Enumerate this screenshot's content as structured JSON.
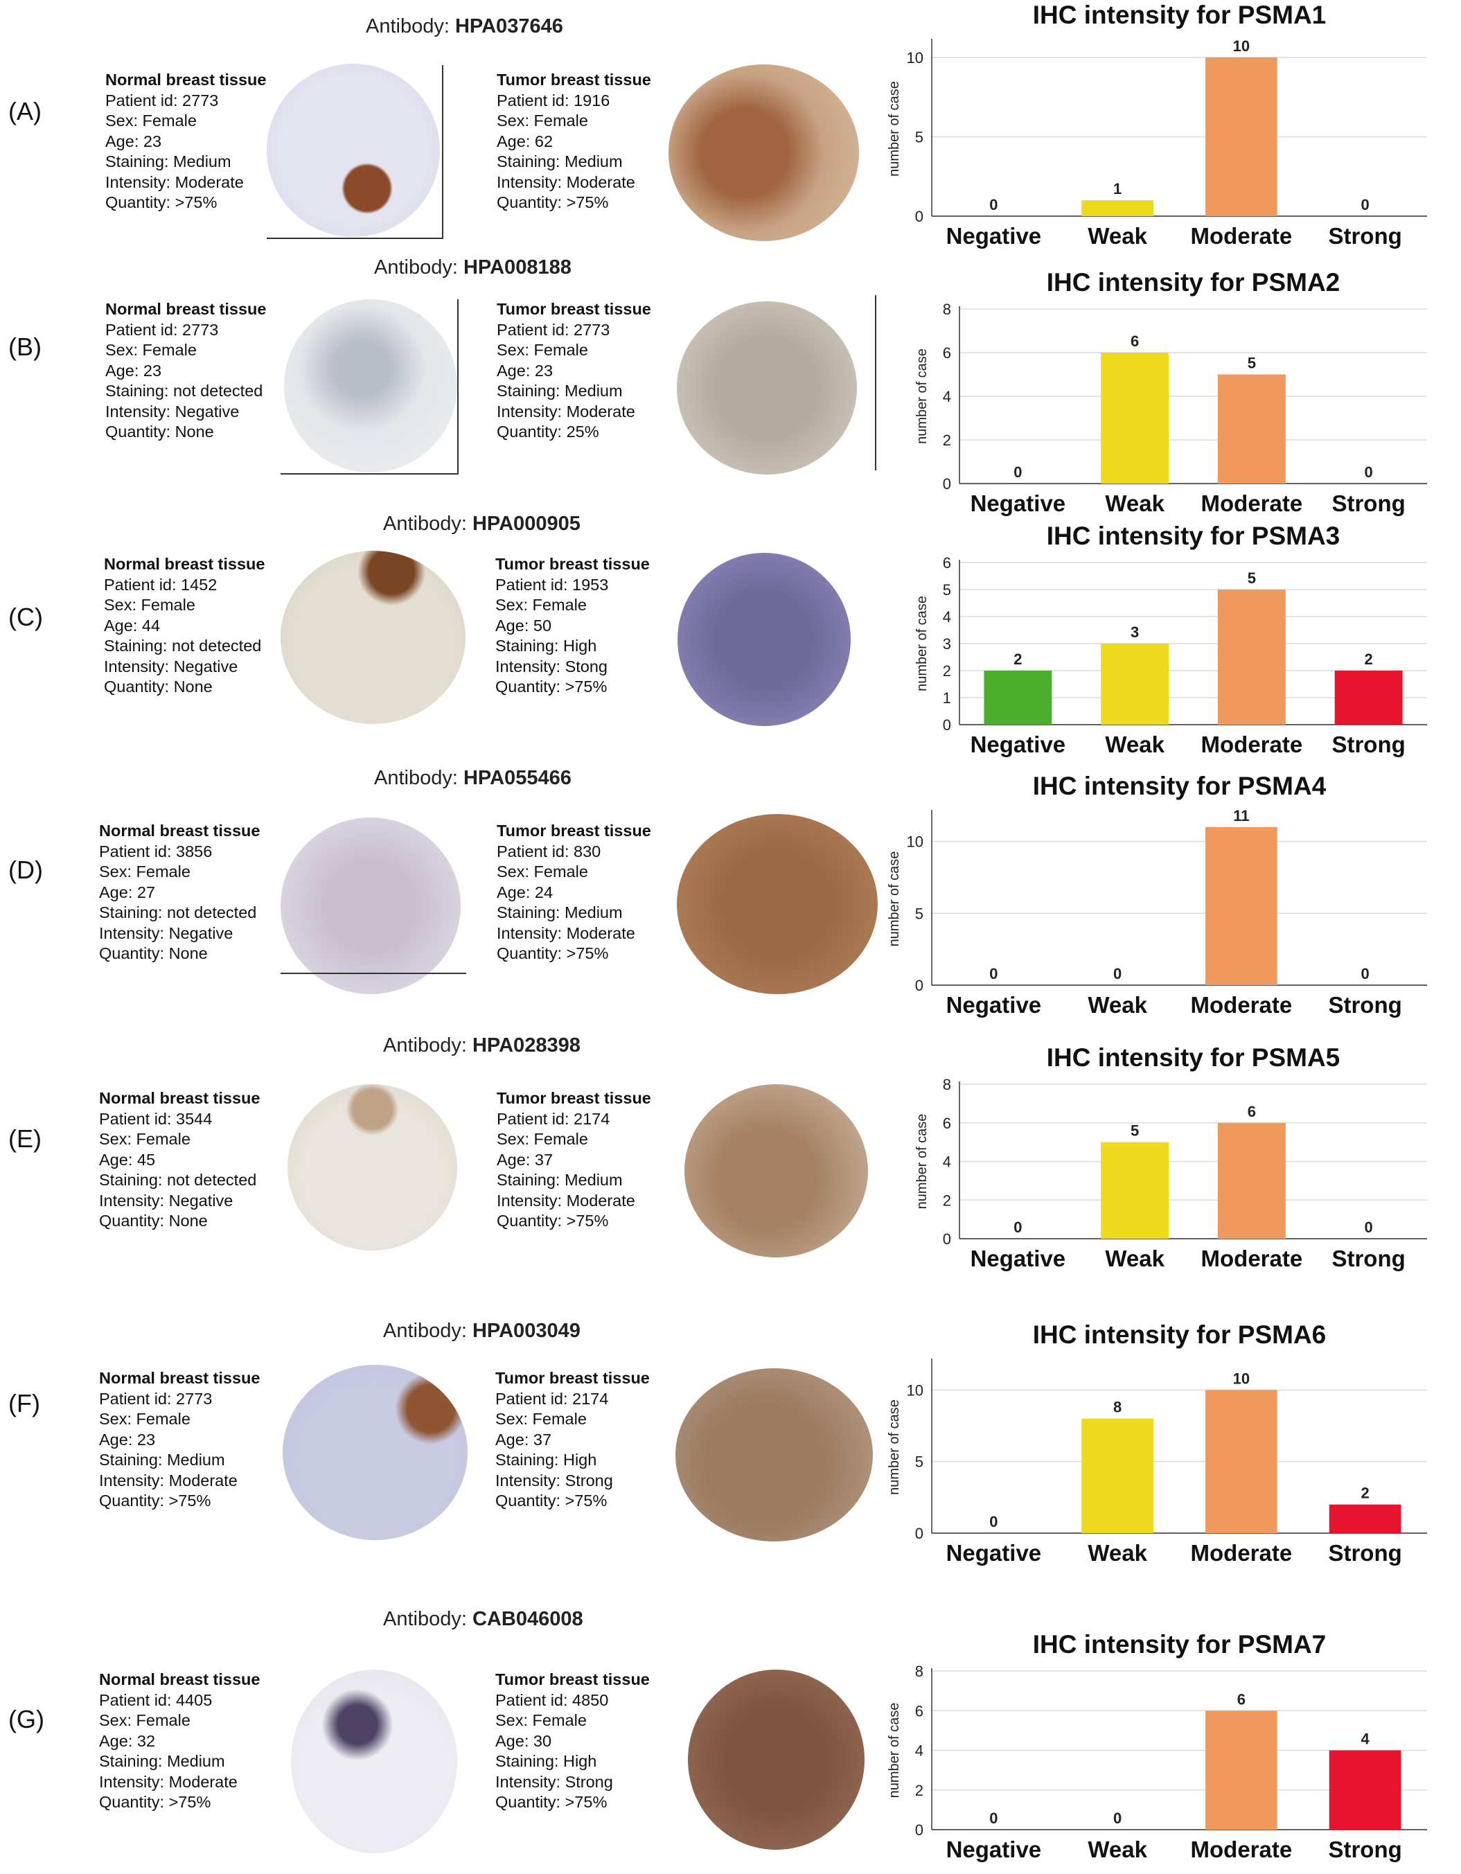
{
  "chart_data": [
    {
      "panel": "(A)",
      "antibody_label": "Antibody:",
      "antibody": "HPA037646",
      "type": "bar",
      "title": "IHC intensity for PSMA1",
      "ylabel": "number of case",
      "categories": [
        "Negative",
        "Weak",
        "Moderate",
        "Strong"
      ],
      "values": [
        0,
        1,
        10,
        0
      ],
      "ylim": [
        0,
        11
      ],
      "yticks": [
        0,
        5,
        10
      ],
      "colors": [
        "#4cae2d",
        "#eed91d",
        "#ef9a5c",
        "#e8132c"
      ],
      "grid": true,
      "normal": {
        "title": "Normal  breast tissue",
        "patient": "Patient id: 2773",
        "sex": "Sex: Female",
        "age": "Age: 23",
        "staining": "Staining: Medium",
        "intensity": "Intensity: Moderate",
        "quantity": "Quantity: >75%"
      },
      "tumor": {
        "title": "Tumor breast tissue",
        "patient": "Patient id: 1916",
        "sex": "Sex: Female",
        "age": "Age: 62",
        "staining": "Staining: Medium",
        "intensity": "Intensity: Moderate",
        "quantity": "Quantity: >75%"
      }
    },
    {
      "panel": "(B)",
      "antibody_label": "Antibody:",
      "antibody": "HPA008188",
      "type": "bar",
      "title": "IHC intensity for PSMA2",
      "ylabel": "number of case",
      "categories": [
        "Negative",
        "Weak",
        "Moderate",
        "Strong"
      ],
      "values": [
        0,
        6,
        5,
        0
      ],
      "ylim": [
        0,
        8
      ],
      "yticks": [
        0,
        2,
        4,
        6,
        8
      ],
      "colors": [
        "#4cae2d",
        "#eed91d",
        "#ef9a5c",
        "#e8132c"
      ],
      "grid": true,
      "normal": {
        "title": "Normal  breast tissue",
        "patient": "Patient id: 2773",
        "sex": "Sex: Female",
        "age": "Age: 23",
        "staining": "Staining: not detected",
        "intensity": "Intensity: Negative",
        "quantity": "Quantity: None"
      },
      "tumor": {
        "title": "Tumor breast tissue",
        "patient": "Patient id: 2773",
        "sex": "Sex: Female",
        "age": "Age: 23",
        "staining": "Staining: Medium",
        "intensity": "Intensity: Moderate",
        "quantity": "Quantity: 25%"
      }
    },
    {
      "panel": "(C)",
      "antibody_label": "Antibody:",
      "antibody": "HPA000905",
      "type": "bar",
      "title": "IHC intensity for PSMA3",
      "ylabel": "number of case",
      "categories": [
        "Negative",
        "Weak",
        "Moderate",
        "Strong"
      ],
      "values": [
        2,
        3,
        5,
        2
      ],
      "ylim": [
        0,
        6
      ],
      "yticks": [
        0,
        1,
        2,
        3,
        4,
        5,
        6
      ],
      "colors": [
        "#4cae2d",
        "#eed91d",
        "#ef9a5c",
        "#e8132c"
      ],
      "grid": true,
      "normal": {
        "title": "Normal  breast tissue",
        "patient": "Patient id: 1452",
        "sex": "Sex: Female",
        "age": "Age: 44",
        "staining": "Staining: not detected",
        "intensity": "Intensity: Negative",
        "quantity": "Quantity: None"
      },
      "tumor": {
        "title": "Tumor  breast tissue",
        "patient": "Patient id: 1953",
        "sex": "Sex: Female",
        "age": "Age: 50",
        "staining": "Staining: High",
        "intensity": "Intensity: Stong",
        "quantity": "Quantity: >75%"
      }
    },
    {
      "panel": "(D)",
      "antibody_label": "Antibody:",
      "antibody": "HPA055466",
      "type": "bar",
      "title": "IHC intensity for PSMA4",
      "ylabel": "number of case",
      "categories": [
        "Negative",
        "Weak",
        "Moderate",
        "Strong"
      ],
      "values": [
        0,
        0,
        11,
        0
      ],
      "ylim": [
        0,
        12
      ],
      "yticks": [
        0,
        5,
        10
      ],
      "colors": [
        "#4cae2d",
        "#eed91d",
        "#ef9a5c",
        "#e8132c"
      ],
      "grid": true,
      "normal": {
        "title": "Normal  breast tissue",
        "patient": "Patient id: 3856",
        "sex": "Sex: Female",
        "age": "Age: 27",
        "staining": "Staining: not detected",
        "intensity": "Intensity: Negative",
        "quantity": "Quantity: None"
      },
      "tumor": {
        "title": "Tumor  breast tissue",
        "patient": "Patient id: 830",
        "sex": "Sex: Female",
        "age": "Age: 24",
        "staining": "Staining: Medium",
        "intensity": "Intensity: Moderate",
        "quantity": "Quantity: >75%"
      }
    },
    {
      "panel": "(E)",
      "antibody_label": "Antibody:",
      "antibody": "HPA028398",
      "type": "bar",
      "title": "IHC intensity for PSMA5",
      "ylabel": "number of case",
      "categories": [
        "Negative",
        "Weak",
        "Moderate",
        "Strong"
      ],
      "values": [
        0,
        5,
        6,
        0
      ],
      "ylim": [
        0,
        8
      ],
      "yticks": [
        0,
        2,
        4,
        6,
        8
      ],
      "colors": [
        "#4cae2d",
        "#eed91d",
        "#ef9a5c",
        "#e8132c"
      ],
      "grid": true,
      "normal": {
        "title": "Normal  breast tissue",
        "patient": "Patient id: 3544",
        "sex": "Sex: Female",
        "age": "Age: 45",
        "staining": "Staining: not detected",
        "intensity": "Intensity: Negative",
        "quantity": "Quantity: None"
      },
      "tumor": {
        "title": "Tumor  breast tissue",
        "patient": "Patient id: 2174",
        "sex": "Sex: Female",
        "age": "Age: 37",
        "staining": "Staining: Medium",
        "intensity": "Intensity: Moderate",
        "quantity": "Quantity: >75%"
      }
    },
    {
      "panel": "(F)",
      "antibody_label": "Antibody:",
      "antibody": "HPA003049",
      "type": "bar",
      "title": "IHC intensity for PSMA6",
      "ylabel": "number of case",
      "categories": [
        "Negative",
        "Weak",
        "Moderate",
        "Strong"
      ],
      "values": [
        0,
        8,
        10,
        2
      ],
      "ylim": [
        0,
        12
      ],
      "yticks": [
        0,
        5,
        10
      ],
      "colors": [
        "#4cae2d",
        "#eed91d",
        "#ef9a5c",
        "#e8132c"
      ],
      "grid": true,
      "normal": {
        "title": "Normal  breast tissue",
        "patient": "Patient id: 2773",
        "sex": "Sex: Female",
        "age": "Age: 23",
        "staining": "Staining: Medium",
        "intensity": "Intensity: Moderate",
        "quantity": "Quantity: >75%"
      },
      "tumor": {
        "title": "Tumor  breast tissue",
        "patient": "Patient id: 2174",
        "sex": "Sex: Female",
        "age": "Age: 37",
        "staining": "Staining: High",
        "intensity": "Intensity: Strong",
        "quantity": "Quantity: >75%"
      }
    },
    {
      "panel": "(G)",
      "antibody_label": "Antibody:",
      "antibody": "CAB046008",
      "type": "bar",
      "title": "IHC intensity for PSMA7",
      "ylabel": "number of case",
      "categories": [
        "Negative",
        "Weak",
        "Moderate",
        "Strong"
      ],
      "values": [
        0,
        0,
        6,
        4
      ],
      "ylim": [
        0,
        8
      ],
      "yticks": [
        0,
        2,
        4,
        6,
        8
      ],
      "colors": [
        "#4cae2d",
        "#eed91d",
        "#ef9a5c",
        "#e8132c"
      ],
      "grid": true,
      "normal": {
        "title": "Normal  breast tissue",
        "patient": "Patient id: 4405",
        "sex": "Sex: Female",
        "age": "Age: 32",
        "staining": "Staining: Medium",
        "intensity": "Intensity: Moderate",
        "quantity": "Quantity: >75%"
      },
      "tumor": {
        "title": "Tumor  breast tissue",
        "patient": "Patient id: 4850",
        "sex": "Sex: Female",
        "age": "Age: 30",
        "staining": "Staining: High",
        "intensity": "Intensity: Strong",
        "quantity": "Quantity: >75%"
      }
    }
  ]
}
